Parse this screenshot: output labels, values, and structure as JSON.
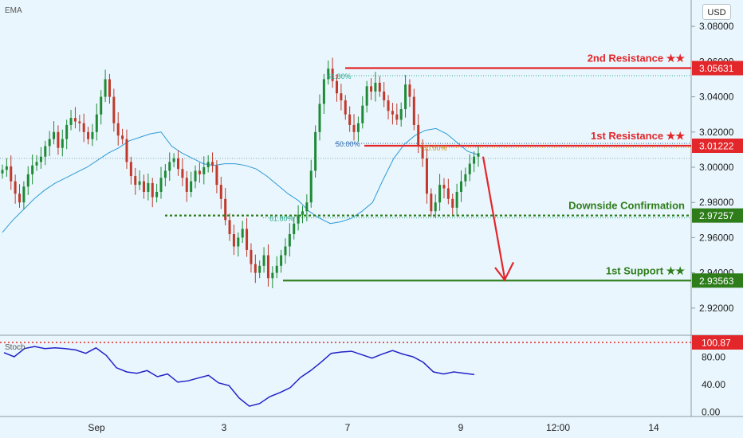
{
  "chart_data": [
    {
      "type": "candlestick",
      "title": "",
      "indicator": "EMA",
      "currency": "USD",
      "ylim": [
        2.905,
        3.095
      ],
      "y_ticks": [
        "3.08000",
        "3.06000",
        "3.04000",
        "3.02000",
        "3.00000",
        "2.98000",
        "2.96000",
        "2.94000",
        "2.92000"
      ],
      "x_tick_labels": [
        "Sep",
        "3",
        "7",
        "9",
        "12:00",
        "14"
      ],
      "levels": [
        {
          "name": "2nd Resistance ★★",
          "value": "3.05631",
          "color": "#e3262a",
          "style": "solid"
        },
        {
          "name": "1st Resistance ★★",
          "value": "3.01222",
          "color": "#e3262a",
          "style": "solid"
        },
        {
          "name": "Downside Confirmation",
          "value": "2.97257",
          "color": "#2e7d1a",
          "style": "dotted"
        },
        {
          "name": "1st Support ★★",
          "value": "2.93563",
          "color": "#2e7d1a",
          "style": "solid"
        }
      ],
      "fib_labels": [
        {
          "text": "61.80%",
          "color": "#2aa88a"
        },
        {
          "text": "50.00%",
          "color": "#2962a8"
        },
        {
          "text": "50.00%",
          "color": "#c8911a"
        },
        {
          "text": "61.80%",
          "color": "#2aa88a"
        }
      ],
      "close_series": [
        2.9985,
        3.0005,
        2.992,
        2.985,
        2.98,
        2.989,
        2.996,
        3.001,
        3.003,
        3.006,
        3.012,
        3.016,
        3.02,
        3.011,
        3.016,
        3.024,
        3.028,
        3.026,
        3.025,
        3.02,
        3.016,
        3.02,
        3.03,
        3.04,
        3.05,
        3.04,
        3.025,
        3.018,
        3.016,
        3.003,
        2.995,
        2.99,
        2.992,
        2.986,
        2.991,
        2.983,
        2.986,
        2.994,
        2.998,
        3.003,
        3.005,
        2.999,
        2.994,
        2.986,
        2.992,
        2.998,
        2.996,
        3.0,
        3.003,
        3.001,
        2.99,
        2.982,
        2.97,
        2.962,
        2.955,
        2.96,
        2.965,
        2.953,
        2.945,
        2.94,
        2.944,
        2.95,
        2.937,
        2.94,
        2.944,
        2.95,
        2.955,
        2.962,
        2.968,
        2.973,
        2.975,
        2.98,
        2.998,
        3.02,
        3.036,
        3.05,
        3.056,
        3.049,
        3.042,
        3.038,
        3.03,
        3.024,
        3.02,
        3.025,
        3.035,
        3.046,
        3.043,
        3.048,
        3.043,
        3.038,
        3.032,
        3.03,
        3.027,
        3.033,
        3.047,
        3.04,
        3.024,
        3.012,
        3.005,
        2.985,
        2.975,
        2.98,
        2.99,
        2.988,
        2.982,
        2.977,
        2.986,
        2.992,
        2.996,
        3.002,
        3.006,
        3.008
      ],
      "ema_series": [
        2.963,
        2.97,
        2.976,
        2.982,
        2.987,
        2.991,
        2.994,
        2.997,
        3.0,
        3.004,
        3.008,
        3.011,
        3.015,
        3.017,
        3.019,
        3.02,
        3.012,
        3.008,
        3.005,
        3.002,
        3.001,
        3.002,
        3.002,
        3.001,
        2.999,
        2.995,
        2.99,
        2.985,
        2.981,
        2.975,
        2.971,
        2.968,
        2.969,
        2.971,
        2.975,
        2.98,
        2.993,
        3.005,
        3.013,
        3.018,
        3.021,
        3.022,
        3.019,
        3.014,
        3.009,
        3.007
      ],
      "stochastic": {
        "name": "Stoch",
        "y_ticks": [
          "100.87",
          "80.00",
          "40.00",
          "0.00"
        ],
        "ylim": [
          0,
          100.87
        ],
        "values": [
          86,
          80,
          92,
          95,
          92,
          93,
          92,
          90,
          85,
          93,
          82,
          64,
          58,
          56,
          60,
          51,
          55,
          43,
          45,
          49,
          53,
          42,
          38,
          20,
          8,
          12,
          22,
          28,
          35,
          50,
          60,
          72,
          85,
          87,
          88,
          83,
          78,
          84,
          89,
          84,
          80,
          72,
          58,
          55,
          58,
          56,
          54
        ]
      }
    }
  ]
}
